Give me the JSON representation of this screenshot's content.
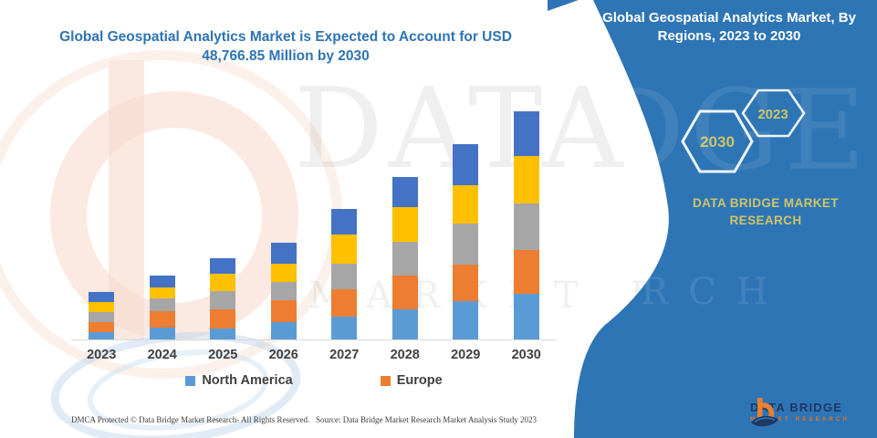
{
  "title": "Global Geospatial Analytics Market is Expected to Account for USD 48,766.85 Million by 2030",
  "panel": {
    "heading": "Global Geospatial Analytics Market, By Regions, 2023 to 2030",
    "hexagon_back_label": "2030",
    "hexagon_front_label": "2023",
    "brand": "DATA BRIDGE MARKET RESEARCH",
    "logo_name": "DATA BRIDGE",
    "logo_tagline": "MARKET RESEARCH",
    "bg_color": "#2e75b6",
    "accent_gold": "#cdc565"
  },
  "footer": {
    "left": "DMCA Protected © Data Bridge Market Research-  All Rights Reserved.",
    "right": "Source: Data Bridge Market Research  Market Analysis Study 2023"
  },
  "legend": [
    {
      "label": "North America",
      "color": "#5b9bd5"
    },
    {
      "label": "Europe",
      "color": "#ed7d31"
    }
  ],
  "watermarks": {
    "big_text": "DATA BRI",
    "big_text_panel": "IDGE",
    "row_text": "MARKET RESE",
    "row_text_panel": "EARCH"
  },
  "chart_data": {
    "type": "bar",
    "stacked": true,
    "title": "Global Geospatial Analytics Market, By Regions, 2023 to 2030",
    "unit": "USD Million",
    "xlabel": "",
    "ylabel": "",
    "y_axis_visible": false,
    "grid": false,
    "legend_position": "bottom",
    "ylim": [
      0,
      48766.85
    ],
    "categories": [
      "2023",
      "2024",
      "2025",
      "2026",
      "2027",
      "2028",
      "2029",
      "2030"
    ],
    "series": [
      {
        "name": "North America",
        "color": "#5b9bd5",
        "values": [
          1570,
          2550,
          2350,
          3720,
          4900,
          6460,
          8230,
          9790
        ]
      },
      {
        "name": "Europe",
        "color": "#ed7d31",
        "values": [
          2150,
          3530,
          4110,
          4700,
          5880,
          7250,
          7830,
          9400
        ]
      },
      {
        "name": "unlabeled-region-gray",
        "color": "#a6a6a6",
        "values": [
          2150,
          2740,
          3920,
          3920,
          5480,
          7250,
          8810,
          9790
        ]
      },
      {
        "name": "unlabeled-region-yellow",
        "color": "#ffc000",
        "values": [
          2150,
          2350,
          3720,
          3920,
          6270,
          7250,
          8030,
          10190
        ]
      },
      {
        "name": "unlabeled-region-darkblue",
        "color": "#4472c4",
        "values": [
          2150,
          2550,
          3330,
          4500,
          5290,
          6460,
          8810,
          9596.85
        ]
      }
    ],
    "totals_estimated": [
      10170,
      13720,
      17430,
      20760,
      27820,
      34670,
      41710,
      48766.85
    ],
    "note": "Only the 2030 total (USD 48,766.85 Million) is printed on the image; per-segment values are estimated from bar heights."
  }
}
